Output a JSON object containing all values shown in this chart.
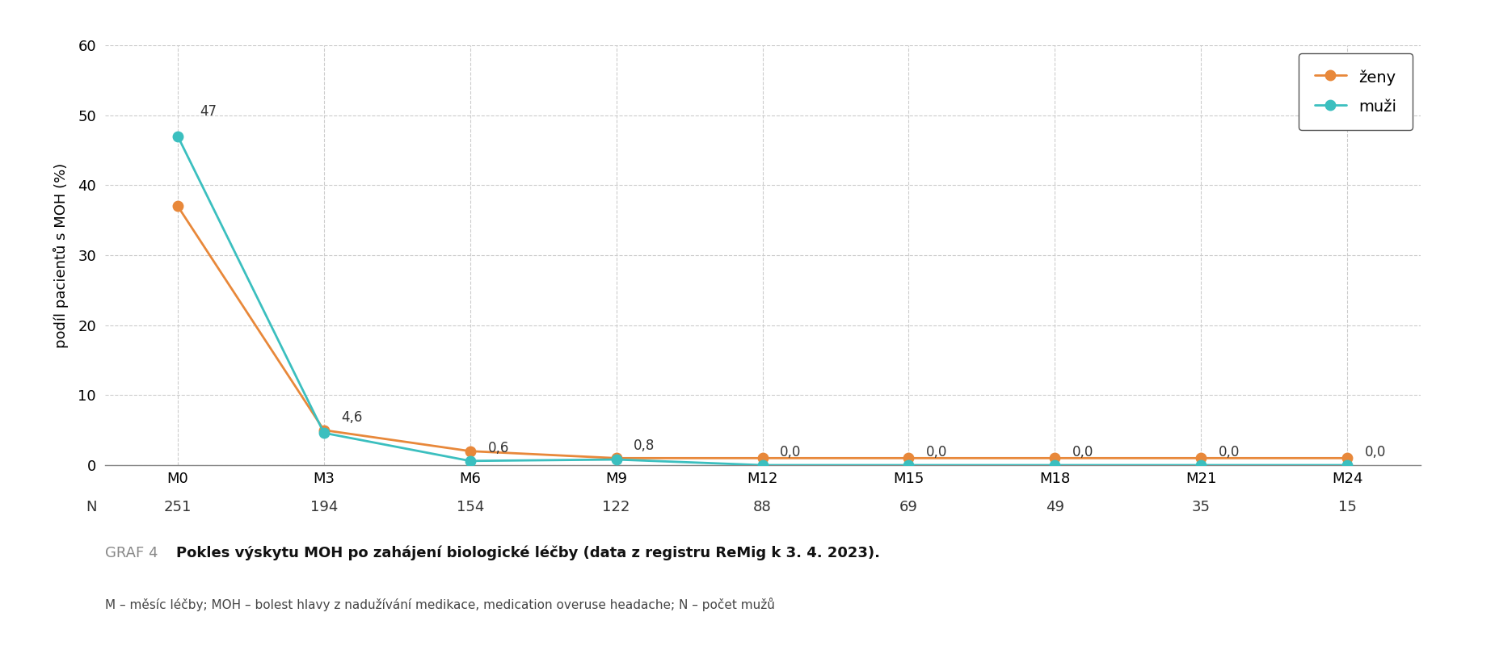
{
  "x_labels": [
    "M0",
    "M3",
    "M6",
    "M9",
    "M12",
    "M15",
    "M18",
    "M21",
    "M24"
  ],
  "n_values": [
    "251",
    "194",
    "154",
    "122",
    "88",
    "69",
    "49",
    "35",
    "15"
  ],
  "zeny_values": [
    37.0,
    5.0,
    2.0,
    1.0,
    1.0,
    1.0,
    1.0,
    1.0,
    1.0
  ],
  "muzi_values": [
    47.0,
    4.6,
    0.6,
    0.8,
    0.0,
    0.0,
    0.0,
    0.0,
    0.0
  ],
  "muzi_annotations": [
    "47",
    "4,6",
    "0,6",
    "0,8",
    "0,0",
    "0,0",
    "0,0",
    "0,0",
    "0,0"
  ],
  "zeny_color": "#e8883a",
  "muzi_color": "#3bbfbf",
  "ylabel": "podíl pacientů s MOH (%)",
  "ylim": [
    0,
    60
  ],
  "yticks": [
    0,
    10,
    20,
    30,
    40,
    50,
    60
  ],
  "legend_zeny": "ženy",
  "legend_muzi": "muži",
  "title_label": "GRAF 4",
  "title_text": "Pokles výskytu MOH po zahájení biologické léčby (data z registru ReMig k 3. 4. 2023).",
  "footnote": "M – měsíc léčby; MOH – bolest hlavy z nadužívání medikace, medication overuse headache; N – počet mužů",
  "n_label": "N",
  "background_color": "#ffffff",
  "grid_color": "#cccccc",
  "marker_size": 9,
  "line_width": 2.0,
  "annotation_fontsize": 12,
  "axis_fontsize": 13,
  "legend_fontsize": 14,
  "title_fontsize": 13,
  "footnote_fontsize": 11
}
